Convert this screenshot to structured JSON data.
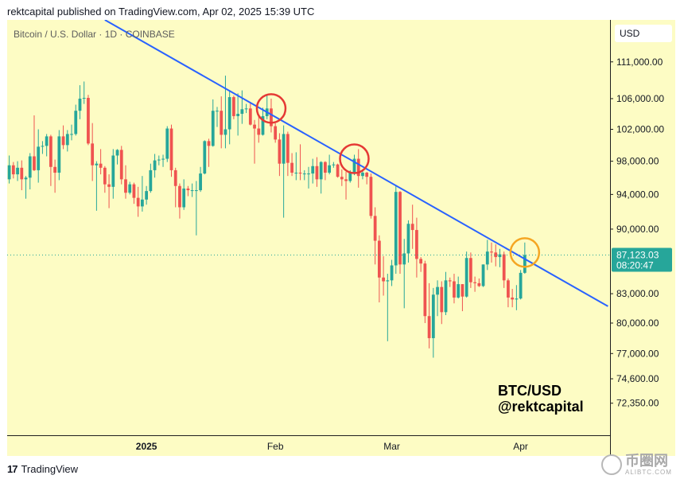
{
  "header": {
    "publish_line": "rektcapital published on TradingView.com, Apr 02, 2025 15:39 UTC"
  },
  "chart_header": {
    "symbol_info": "Bitcoin / U.S. Dollar · 1D · COINBASE",
    "currency": "USD"
  },
  "price_tag": {
    "price": "87,123.03",
    "countdown": "08:20:47",
    "value": 87123.03,
    "color": "#26a69a"
  },
  "watermark": {
    "line1": "BTC/USD",
    "line2": "@rektcapital"
  },
  "footer": {
    "logo_mark": "17",
    "logo_text": "TradingView",
    "site_name": "币圈网",
    "site_sub": "ALIBTC.COM"
  },
  "colors": {
    "background": "#fdfcc4",
    "up": "#26a69a",
    "down": "#ef5350",
    "trendline": "#2962ff",
    "circle_red": "#e53935",
    "circle_orange": "#f5a623"
  },
  "chart_data": {
    "type": "candlestick",
    "title": "",
    "xlabel": "",
    "ylabel": "",
    "x_tick_labels": [
      "2025",
      "Feb",
      "Mar",
      "Apr"
    ],
    "y_tick_labels": [
      "111,000.00",
      "106,000.00",
      "102,000.00",
      "98,000.00",
      "94,000.00",
      "90,000.00",
      "83,000.00",
      "80,000.00",
      "77,000.00",
      "74,600.00",
      "72,350.00"
    ],
    "y_ticks": [
      111000,
      106000,
      102000,
      98000,
      94000,
      90000,
      83000,
      80000,
      77000,
      74600,
      72350
    ],
    "log_scale": true,
    "ylim": [
      69500,
      117000
    ],
    "xlim": [
      "2024-11-29",
      "2025-04-22"
    ],
    "current_price": 87123.03,
    "candles": [
      [
        "2024-11-29",
        95800,
        98700,
        95300,
        97500
      ],
      [
        "2024-11-30",
        97500,
        97900,
        95900,
        96400
      ],
      [
        "2024-12-01",
        96400,
        98000,
        95600,
        97200
      ],
      [
        "2024-12-02",
        97200,
        98100,
        94500,
        95800
      ],
      [
        "2024-12-03",
        95800,
        96200,
        93500,
        96000
      ],
      [
        "2024-12-04",
        96000,
        99000,
        94600,
        98600
      ],
      [
        "2024-12-05",
        98600,
        103800,
        96800,
        96900
      ],
      [
        "2024-12-06",
        96900,
        102000,
        95400,
        99800
      ],
      [
        "2024-12-07",
        99800,
        100500,
        98900,
        99900
      ],
      [
        "2024-12-08",
        99900,
        101400,
        98600,
        101100
      ],
      [
        "2024-12-09",
        101100,
        101300,
        95000,
        97300
      ],
      [
        "2024-12-10",
        97300,
        98200,
        94200,
        96600
      ],
      [
        "2024-12-11",
        96600,
        101900,
        95700,
        101100
      ],
      [
        "2024-12-12",
        101100,
        102500,
        99500,
        100000
      ],
      [
        "2024-12-13",
        100000,
        101900,
        99200,
        101400
      ],
      [
        "2024-12-14",
        101400,
        102600,
        100600,
        101400
      ],
      [
        "2024-12-15",
        101400,
        105200,
        101200,
        104400
      ],
      [
        "2024-12-16",
        104400,
        107800,
        103300,
        106000
      ],
      [
        "2024-12-17",
        106000,
        108300,
        105300,
        106100
      ],
      [
        "2024-12-18",
        106100,
        106500,
        100000,
        100200
      ],
      [
        "2024-12-19",
        100200,
        102800,
        95600,
        97500
      ],
      [
        "2024-12-20",
        97500,
        98000,
        92100,
        97700
      ],
      [
        "2024-12-21",
        97700,
        99500,
        96400,
        97200
      ],
      [
        "2024-12-22",
        97200,
        97400,
        94200,
        95200
      ],
      [
        "2024-12-23",
        95200,
        96400,
        92400,
        94900
      ],
      [
        "2024-12-24",
        94900,
        99500,
        93500,
        98700
      ],
      [
        "2024-12-25",
        98700,
        99500,
        97600,
        99400
      ],
      [
        "2024-12-26",
        99400,
        99900,
        95200,
        95800
      ],
      [
        "2024-12-27",
        95800,
        97500,
        93500,
        94200
      ],
      [
        "2024-12-28",
        94200,
        95500,
        94000,
        95200
      ],
      [
        "2024-12-29",
        95200,
        95400,
        92900,
        93600
      ],
      [
        "2024-12-30",
        93600,
        94900,
        91400,
        92600
      ],
      [
        "2024-12-31",
        92600,
        96200,
        92000,
        93400
      ],
      [
        "2025-01-01",
        93400,
        95000,
        92800,
        94400
      ],
      [
        "2025-01-02",
        94400,
        97700,
        94200,
        96900
      ],
      [
        "2025-01-03",
        96900,
        98900,
        96000,
        98100
      ],
      [
        "2025-01-04",
        98100,
        98700,
        97500,
        98200
      ],
      [
        "2025-01-05",
        98200,
        98800,
        97300,
        98300
      ],
      [
        "2025-01-06",
        98300,
        102400,
        97900,
        102100
      ],
      [
        "2025-01-07",
        102100,
        102600,
        96100,
        96900
      ],
      [
        "2025-01-08",
        96900,
        97200,
        92500,
        95000
      ],
      [
        "2025-01-09",
        95000,
        95300,
        91200,
        92500
      ],
      [
        "2025-01-10",
        92500,
        95800,
        92200,
        94700
      ],
      [
        "2025-01-11",
        94700,
        95000,
        93800,
        94500
      ],
      [
        "2025-01-12",
        94500,
        95300,
        93700,
        94500
      ],
      [
        "2025-01-13",
        94500,
        95600,
        89300,
        94500
      ],
      [
        "2025-01-14",
        94500,
        97300,
        94300,
        96500
      ],
      [
        "2025-01-15",
        96500,
        100600,
        96400,
        100500
      ],
      [
        "2025-01-16",
        100500,
        100800,
        97300,
        99900
      ],
      [
        "2025-01-17",
        99900,
        105900,
        99800,
        104400
      ],
      [
        "2025-01-18",
        104400,
        104900,
        102300,
        104400
      ],
      [
        "2025-01-19",
        104400,
        106300,
        99600,
        101300
      ],
      [
        "2025-01-20",
        101300,
        109100,
        99600,
        102000
      ],
      [
        "2025-01-21",
        102000,
        107100,
        100100,
        106200
      ],
      [
        "2025-01-22",
        106200,
        106400,
        103300,
        103700
      ],
      [
        "2025-01-23",
        103700,
        106700,
        101200,
        104000
      ],
      [
        "2025-01-24",
        104000,
        107100,
        102700,
        104600
      ],
      [
        "2025-01-25",
        104600,
        105300,
        104100,
        104700
      ],
      [
        "2025-01-26",
        104700,
        105500,
        102500,
        102600
      ],
      [
        "2025-01-27",
        102600,
        103200,
        97700,
        102100
      ],
      [
        "2025-01-28",
        102100,
        103800,
        100300,
        101300
      ],
      [
        "2025-01-29",
        101300,
        104800,
        101200,
        103700
      ],
      [
        "2025-01-30",
        103700,
        106500,
        103300,
        104700
      ],
      [
        "2025-01-31",
        104700,
        106000,
        101600,
        102400
      ],
      [
        "2025-02-01",
        102400,
        102800,
        100300,
        100700
      ],
      [
        "2025-02-02",
        100700,
        101500,
        96200,
        97700
      ],
      [
        "2025-02-03",
        97700,
        102500,
        91300,
        101400
      ],
      [
        "2025-02-04",
        101400,
        101700,
        96200,
        97800
      ],
      [
        "2025-02-05",
        97800,
        99000,
        96200,
        96600
      ],
      [
        "2025-02-06",
        96600,
        99100,
        95700,
        96600
      ],
      [
        "2025-02-07",
        96600,
        100100,
        95700,
        96500
      ],
      [
        "2025-02-08",
        96500,
        96900,
        95700,
        96500
      ],
      [
        "2025-02-09",
        96500,
        97300,
        94700,
        96500
      ],
      [
        "2025-02-10",
        96500,
        98300,
        95300,
        97400
      ],
      [
        "2025-02-11",
        97400,
        98500,
        94900,
        95800
      ],
      [
        "2025-02-12",
        95800,
        98000,
        94100,
        97900
      ],
      [
        "2025-02-13",
        97900,
        98000,
        95700,
        96600
      ],
      [
        "2025-02-14",
        96600,
        98800,
        96400,
        97500
      ],
      [
        "2025-02-15",
        97500,
        97900,
        97200,
        97600
      ],
      [
        "2025-02-16",
        97600,
        97700,
        96000,
        96100
      ],
      [
        "2025-02-17",
        96100,
        97000,
        95000,
        95800
      ],
      [
        "2025-02-18",
        95800,
        96700,
        93400,
        95600
      ],
      [
        "2025-02-19",
        95600,
        96900,
        95400,
        96600
      ],
      [
        "2025-02-20",
        96600,
        98800,
        96300,
        98300
      ],
      [
        "2025-02-21",
        98300,
        99500,
        94800,
        96200
      ],
      [
        "2025-02-22",
        96200,
        96800,
        95800,
        96600
      ],
      [
        "2025-02-23",
        96600,
        96700,
        95200,
        96100
      ],
      [
        "2025-02-24",
        96100,
        96500,
        91200,
        91500
      ],
      [
        "2025-02-25",
        91500,
        92500,
        86100,
        88700
      ],
      [
        "2025-02-26",
        88700,
        89300,
        82100,
        84700
      ],
      [
        "2025-02-27",
        84700,
        87000,
        82800,
        84300
      ],
      [
        "2025-02-28",
        84300,
        85100,
        78200,
        84400
      ],
      [
        "2025-03-01",
        84400,
        86600,
        83800,
        86000
      ],
      [
        "2025-03-02",
        86000,
        95000,
        85100,
        94300
      ],
      [
        "2025-03-03",
        94300,
        94400,
        85100,
        86100
      ],
      [
        "2025-03-04",
        86100,
        88900,
        81500,
        87300
      ],
      [
        "2025-03-05",
        87300,
        91000,
        86300,
        90600
      ],
      [
        "2025-03-06",
        90600,
        92800,
        87800,
        89900
      ],
      [
        "2025-03-07",
        89900,
        91300,
        84700,
        86700
      ],
      [
        "2025-03-08",
        86700,
        86900,
        85300,
        86200
      ],
      [
        "2025-03-09",
        86200,
        86500,
        80000,
        80700
      ],
      [
        "2025-03-10",
        80700,
        84100,
        77500,
        78500
      ],
      [
        "2025-03-11",
        78500,
        83600,
        76600,
        82900
      ],
      [
        "2025-03-12",
        82900,
        84400,
        80700,
        83700
      ],
      [
        "2025-03-13",
        83700,
        84300,
        79900,
        81100
      ],
      [
        "2025-03-14",
        81100,
        85300,
        80800,
        84400
      ],
      [
        "2025-03-15",
        84400,
        84700,
        83700,
        84300
      ],
      [
        "2025-03-16",
        84300,
        85100,
        82000,
        82600
      ],
      [
        "2025-03-17",
        82600,
        84800,
        82500,
        84000
      ],
      [
        "2025-03-18",
        84000,
        84000,
        81200,
        82700
      ],
      [
        "2025-03-19",
        82700,
        87500,
        82600,
        86800
      ],
      [
        "2025-03-20",
        86800,
        87400,
        83600,
        84200
      ],
      [
        "2025-03-21",
        84200,
        84800,
        83200,
        84100
      ],
      [
        "2025-03-22",
        84100,
        84600,
        83700,
        83800
      ],
      [
        "2025-03-23",
        83800,
        86100,
        83700,
        86100
      ],
      [
        "2025-03-24",
        86100,
        88800,
        85500,
        87500
      ],
      [
        "2025-03-25",
        87500,
        88500,
        86300,
        87400
      ],
      [
        "2025-03-26",
        87400,
        88300,
        85900,
        86900
      ],
      [
        "2025-03-27",
        86900,
        87800,
        85800,
        87200
      ],
      [
        "2025-03-28",
        87200,
        87500,
        83600,
        84400
      ],
      [
        "2025-03-29",
        84400,
        84600,
        81600,
        82600
      ],
      [
        "2025-03-30",
        82600,
        83500,
        81600,
        82400
      ],
      [
        "2025-03-31",
        82400,
        83900,
        81300,
        82500
      ],
      [
        "2025-04-01",
        82500,
        85500,
        82400,
        85200
      ],
      [
        "2025-04-02",
        85200,
        88500,
        85100,
        87123
      ]
    ],
    "trendline": [
      [
        "2024-12-22",
        117000
      ],
      [
        "2025-04-22",
        81700
      ]
    ],
    "circles": [
      {
        "date": "2025-01-31",
        "price": 104700,
        "color": "#e53935"
      },
      {
        "date": "2025-02-20",
        "price": 98300,
        "color": "#e53935"
      },
      {
        "date": "2025-04-02",
        "price": 87400,
        "color": "#f5a623"
      }
    ]
  }
}
